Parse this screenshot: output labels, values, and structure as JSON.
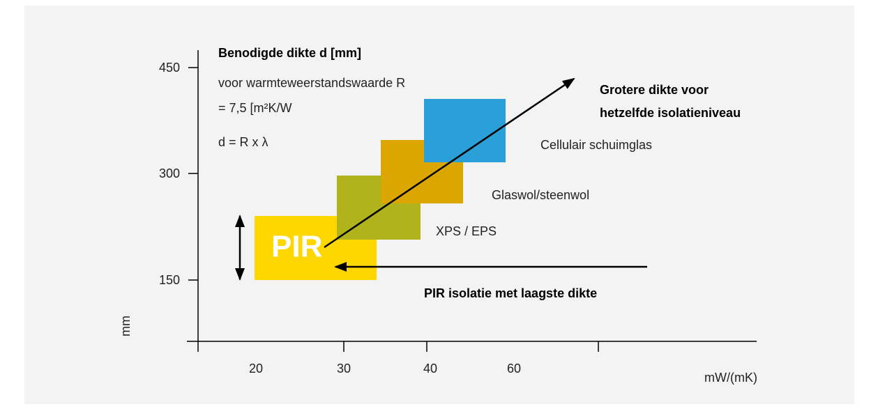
{
  "title": "Benodigde dikte d [mm]",
  "description": [
    "voor warmteweerstandswaarde R",
    "= 7,5 [m²K/W",
    "d = R x λ"
  ],
  "y_axis": {
    "label": "mm",
    "ticks": [
      "450",
      "300",
      "150"
    ]
  },
  "x_axis": {
    "label": "mW/(mK)",
    "ticks": [
      "20",
      "30",
      "40",
      "60"
    ]
  },
  "materials": [
    {
      "label": "PIR"
    },
    {
      "label": "XPS / EPS"
    },
    {
      "label": "Glaswol/steenwol"
    },
    {
      "label": "Cellulair schuimglas"
    }
  ],
  "annotations": {
    "up": [
      "Grotere dikte voor",
      "hetzelfde isolatieniveau"
    ],
    "left": "PIR isolatie met laagste dikte"
  }
}
